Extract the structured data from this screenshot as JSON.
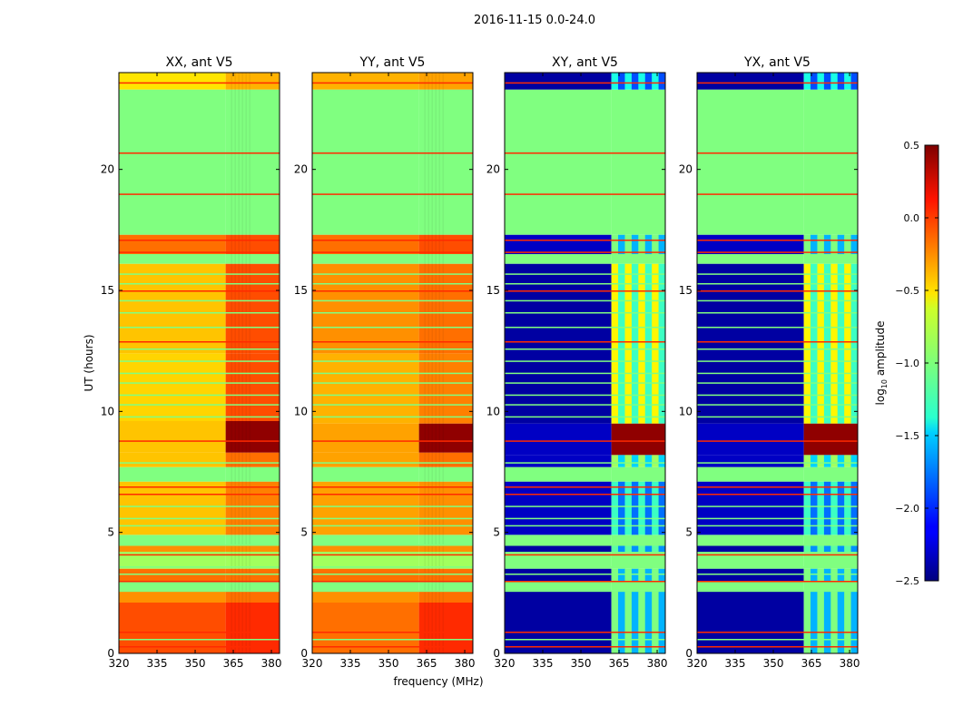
{
  "chart_data": {
    "type": "heatmap",
    "title": "2016-11-15 0.0-24.0",
    "xlabel": "frequency (MHz)",
    "ylabel": "UT (hours)",
    "xlim": [
      320,
      383.2
    ],
    "ylim": [
      0,
      24
    ],
    "xticks": [
      "320",
      "335",
      "350",
      "365",
      "380"
    ],
    "yticks": [
      "0",
      "5",
      "10",
      "15",
      "20"
    ],
    "high_band_start_mhz": 362,
    "colorbar": {
      "label": "log10 amplitude",
      "label_main": "log",
      "label_sub": "10",
      "label_rest": " amplitude",
      "range": [
        -2.5,
        0.5
      ],
      "ticks": [
        "0.5",
        "0.0",
        "−0.5",
        "−1.0",
        "−1.5",
        "−2.0",
        "−2.5"
      ]
    },
    "flag_lines_hours": [
      0.3,
      0.9,
      3.0,
      4.1,
      6.6,
      6.9,
      8.8,
      12.9,
      15.0,
      16.6,
      17.1,
      19.0,
      20.7,
      23.6
    ],
    "green_lines_hours": [
      0.6,
      2.6,
      3.3,
      3.6,
      4.5,
      5.3,
      5.6,
      6.1,
      7.9,
      9.8,
      10.3,
      10.7,
      11.2,
      11.6,
      12.1,
      12.6,
      13.5,
      14.1,
      14.6,
      15.3,
      15.7
    ],
    "panels": [
      {
        "title": "XX, ant V5",
        "stripes": false,
        "segments": [
          [
            0,
            2.1,
            -0.1,
            0.0
          ],
          [
            2.1,
            2.6,
            -0.3,
            -0.2
          ],
          [
            2.6,
            3.0,
            -1.0,
            -1.0
          ],
          [
            3.0,
            3.5,
            -0.2,
            -0.2
          ],
          [
            3.5,
            4.2,
            -0.9,
            -0.9
          ],
          [
            4.2,
            4.5,
            -0.3,
            -0.3
          ],
          [
            4.5,
            4.9,
            -1.0,
            -1.0
          ],
          [
            4.9,
            7.1,
            -0.45,
            -0.25
          ],
          [
            7.1,
            7.7,
            -1.0,
            -1.0
          ],
          [
            7.7,
            8.3,
            -0.45,
            -0.2
          ],
          [
            8.3,
            9.6,
            -0.45,
            0.45
          ],
          [
            9.6,
            12.4,
            -0.5,
            -0.1
          ],
          [
            12.4,
            16.1,
            -0.45,
            -0.1
          ],
          [
            16.1,
            16.5,
            -1.0,
            -1.0
          ],
          [
            16.5,
            17.3,
            -0.2,
            -0.1
          ],
          [
            17.3,
            23.3,
            -1.0,
            -1.0
          ],
          [
            23.3,
            24,
            -0.55,
            -0.4
          ]
        ]
      },
      {
        "title": "YY, ant V5",
        "stripes": false,
        "segments": [
          [
            0,
            2.1,
            -0.2,
            0.0
          ],
          [
            2.1,
            2.6,
            -0.3,
            -0.2
          ],
          [
            2.6,
            3.0,
            -1.0,
            -1.0
          ],
          [
            3.0,
            3.5,
            -0.2,
            -0.2
          ],
          [
            3.5,
            4.2,
            -0.9,
            -0.9
          ],
          [
            4.2,
            4.5,
            -0.3,
            -0.3
          ],
          [
            4.5,
            4.9,
            -1.0,
            -1.0
          ],
          [
            4.9,
            7.1,
            -0.35,
            -0.3
          ],
          [
            7.1,
            7.7,
            -1.0,
            -1.0
          ],
          [
            7.7,
            8.3,
            -0.35,
            -0.2
          ],
          [
            8.3,
            9.5,
            -0.35,
            0.45
          ],
          [
            9.5,
            12.4,
            -0.4,
            -0.25
          ],
          [
            12.4,
            16.1,
            -0.3,
            -0.2
          ],
          [
            16.1,
            16.5,
            -1.0,
            -1.0
          ],
          [
            16.5,
            17.3,
            -0.2,
            -0.1
          ],
          [
            17.3,
            23.3,
            -1.0,
            -1.0
          ],
          [
            23.3,
            24,
            -0.4,
            -0.35
          ]
        ]
      },
      {
        "title": "XY, ant V5",
        "stripes": true,
        "segments": [
          [
            0,
            2.6,
            -2.4,
            -1.0
          ],
          [
            2.6,
            3.0,
            -1.0,
            -1.0
          ],
          [
            3.0,
            3.5,
            -2.4,
            -1.0
          ],
          [
            3.5,
            4.2,
            -1.0,
            -1.0
          ],
          [
            4.2,
            4.5,
            -2.4,
            -1.1
          ],
          [
            4.5,
            4.9,
            -1.0,
            -1.0
          ],
          [
            4.9,
            7.1,
            -2.3,
            -1.2
          ],
          [
            7.1,
            7.7,
            -1.0,
            -1.0
          ],
          [
            7.7,
            8.2,
            -2.3,
            -0.9
          ],
          [
            8.2,
            9.5,
            -2.3,
            0.45
          ],
          [
            9.5,
            16.1,
            -2.4,
            -0.6
          ],
          [
            16.1,
            16.5,
            -1.0,
            -1.0
          ],
          [
            16.5,
            17.3,
            -2.3,
            -1.0
          ],
          [
            17.3,
            23.3,
            -1.0,
            -1.0
          ],
          [
            23.3,
            24,
            -2.4,
            -1.3
          ]
        ]
      },
      {
        "title": "YX, ant V5",
        "stripes": true,
        "segments": [
          [
            0,
            2.6,
            -2.4,
            -1.0
          ],
          [
            2.6,
            3.0,
            -1.0,
            -1.0
          ],
          [
            3.0,
            3.5,
            -2.4,
            -1.0
          ],
          [
            3.5,
            4.2,
            -1.0,
            -1.0
          ],
          [
            4.2,
            4.5,
            -2.4,
            -1.1
          ],
          [
            4.5,
            4.9,
            -1.0,
            -1.0
          ],
          [
            4.9,
            7.1,
            -2.3,
            -1.2
          ],
          [
            7.1,
            7.7,
            -1.0,
            -1.0
          ],
          [
            7.7,
            8.2,
            -2.3,
            -0.9
          ],
          [
            8.2,
            9.5,
            -2.3,
            0.45
          ],
          [
            9.5,
            16.1,
            -2.4,
            -0.6
          ],
          [
            16.1,
            16.5,
            -1.0,
            -1.0
          ],
          [
            16.5,
            17.3,
            -2.3,
            -1.0
          ],
          [
            17.3,
            23.3,
            -1.0,
            -1.0
          ],
          [
            23.3,
            24,
            -2.4,
            -1.3
          ]
        ]
      }
    ]
  }
}
